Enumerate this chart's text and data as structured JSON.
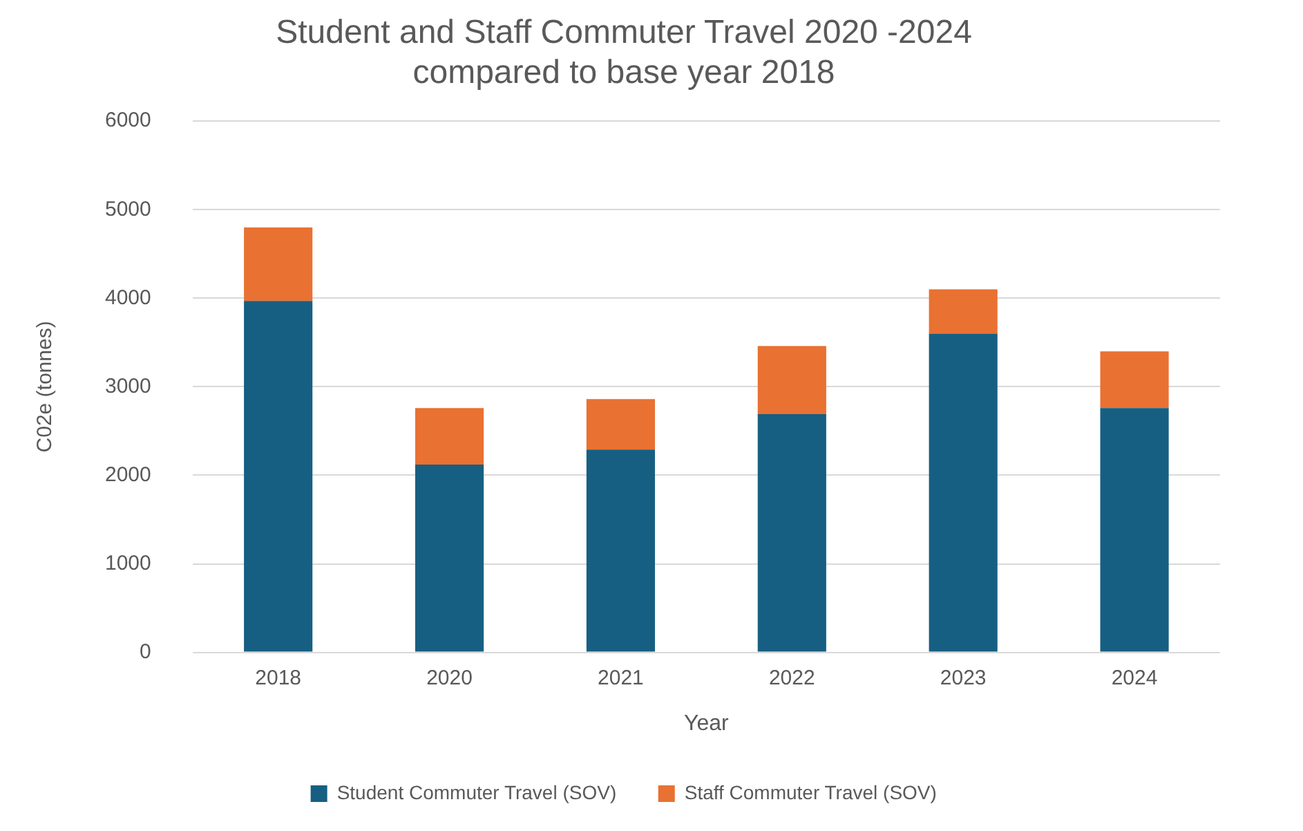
{
  "chart_data": {
    "type": "bar",
    "stacked": true,
    "title": "Student and Staff Commuter Travel 2020 -2024\ncompared to base year 2018",
    "xlabel": "Year",
    "ylabel": "C02e (tonnes)",
    "categories": [
      "2018",
      "2020",
      "2021",
      "2022",
      "2023",
      "2024"
    ],
    "series": [
      {
        "name": "Student Commuter Travel (SOV)",
        "color": "#175f82",
        "values": [
          3970,
          2120,
          2290,
          2690,
          3600,
          2760
        ]
      },
      {
        "name": "Staff Commuter Travel (SOV)",
        "color": "#e97132",
        "values": [
          830,
          640,
          570,
          770,
          500,
          640
        ]
      }
    ],
    "ylim": [
      0,
      6000
    ],
    "yticks": [
      0,
      1000,
      2000,
      3000,
      4000,
      5000,
      6000
    ],
    "grid": "y",
    "legend": "bottom"
  }
}
